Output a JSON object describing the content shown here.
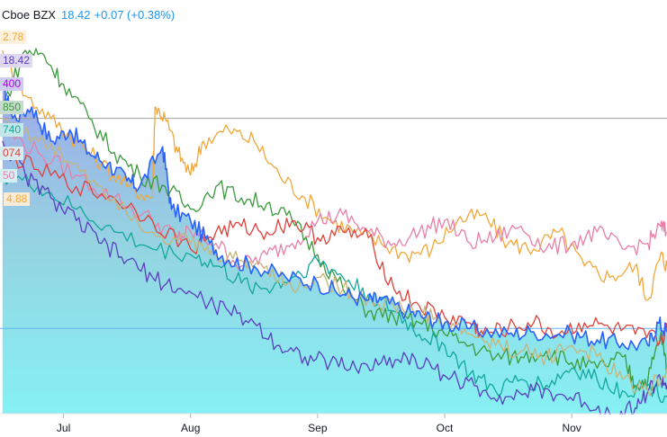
{
  "header": {
    "symbol_exchange": "Cboe BZX",
    "price": "18.42",
    "change": "+0.07 (+0.38%)"
  },
  "value_labels": [
    {
      "text": "2.78",
      "color": "#f2a73a",
      "bg": "#fdf1dd"
    },
    {
      "text": "18.42",
      "color": "#5b3fbf",
      "bg": "#ded9f1"
    },
    {
      "text": "400",
      "color": "#b000e0",
      "bg": "#cfcaf0"
    },
    {
      "text": "850",
      "color": "#3c9a3c",
      "bg": "#c6dcce"
    },
    {
      "text": "740",
      "color": "#14a89a",
      "bg": "#c3e6e8"
    },
    {
      "text": "074",
      "color": "#e0403a",
      "bg": "#d8ecef"
    },
    {
      "text": "50",
      "color": "#e880a8",
      "bg": "#d3f0f2"
    },
    {
      "text": "4.88",
      "color": "#f2a73a",
      "bg": "#f9ecd8"
    }
  ],
  "chart_data": {
    "type": "line",
    "x_tick_labels": [
      "Jul",
      "Aug",
      "Sep",
      "Oct",
      "Nov"
    ],
    "x_range_months": [
      6.5,
      11.75
    ],
    "y_range": [
      -30,
      5
    ],
    "grid": false,
    "series": [
      {
        "color": "#2962ff",
        "fill": true,
        "points": [
          [
            6.52,
            -1.0
          ],
          [
            6.6,
            -4.0
          ],
          [
            6.75,
            -3.0
          ],
          [
            6.9,
            -6.0
          ],
          [
            7.05,
            -5.0
          ],
          [
            7.2,
            -7.0
          ],
          [
            7.35,
            -8.0
          ],
          [
            7.5,
            -9.5
          ],
          [
            7.6,
            -10.0
          ],
          [
            7.78,
            -6.5
          ],
          [
            7.85,
            -12.0
          ],
          [
            8.0,
            -13.0
          ],
          [
            8.15,
            -15.0
          ],
          [
            8.3,
            -16.5
          ],
          [
            8.5,
            -17.0
          ],
          [
            8.75,
            -18.0
          ],
          [
            9.0,
            -18.5
          ],
          [
            9.2,
            -19.5
          ],
          [
            9.4,
            -20.0
          ],
          [
            9.5,
            -20.0
          ],
          [
            9.7,
            -21.0
          ],
          [
            9.85,
            -21.5
          ],
          [
            10.0,
            -22.0
          ],
          [
            10.2,
            -22.5
          ],
          [
            10.5,
            -23.0
          ],
          [
            10.7,
            -22.8
          ],
          [
            11.0,
            -23.0
          ],
          [
            11.2,
            -23.5
          ],
          [
            11.4,
            -23.8
          ],
          [
            11.6,
            -24.0
          ],
          [
            11.68,
            -22.0
          ],
          [
            11.75,
            -22.8
          ]
        ]
      },
      {
        "color": "#f2a73a",
        "fill": false,
        "points": [
          [
            6.52,
            2.0
          ],
          [
            6.7,
            -2.0
          ],
          [
            6.9,
            -4.0
          ],
          [
            7.1,
            -6.0
          ],
          [
            7.3,
            -8.0
          ],
          [
            7.5,
            -10.0
          ],
          [
            7.7,
            -11.0
          ],
          [
            7.72,
            -3.0
          ],
          [
            7.8,
            -4.0
          ],
          [
            7.9,
            -7.0
          ],
          [
            8.0,
            -9.0
          ],
          [
            8.1,
            -6.0
          ],
          [
            8.3,
            -5.0
          ],
          [
            8.5,
            -6.0
          ],
          [
            8.7,
            -9.0
          ],
          [
            8.9,
            -11.0
          ],
          [
            9.1,
            -13.0
          ],
          [
            9.3,
            -14.0
          ],
          [
            9.5,
            -15.0
          ],
          [
            9.7,
            -16.0
          ],
          [
            9.9,
            -15.5
          ],
          [
            10.1,
            -13.0
          ],
          [
            10.3,
            -12.5
          ],
          [
            10.5,
            -15.0
          ],
          [
            10.7,
            -15.5
          ],
          [
            10.9,
            -14.0
          ],
          [
            11.1,
            -17.0
          ],
          [
            11.3,
            -18.0
          ],
          [
            11.5,
            -17.0
          ],
          [
            11.6,
            -20.0
          ],
          [
            11.7,
            -16.0
          ],
          [
            11.75,
            -17.0
          ]
        ]
      },
      {
        "color": "#e880a8",
        "fill": false,
        "points": [
          [
            6.52,
            -5.0
          ],
          [
            6.8,
            -7.0
          ],
          [
            7.1,
            -9.0
          ],
          [
            7.4,
            -11.0
          ],
          [
            7.7,
            -13.0
          ],
          [
            7.9,
            -14.5
          ],
          [
            8.0,
            -14.0
          ],
          [
            8.2,
            -15.0
          ],
          [
            8.4,
            -17.0
          ],
          [
            8.6,
            -16.0
          ],
          [
            8.8,
            -15.0
          ],
          [
            9.0,
            -13.0
          ],
          [
            9.2,
            -12.5
          ],
          [
            9.4,
            -14.0
          ],
          [
            9.6,
            -15.0
          ],
          [
            9.8,
            -14.0
          ],
          [
            10.0,
            -13.0
          ],
          [
            10.2,
            -15.0
          ],
          [
            10.4,
            -14.5
          ],
          [
            10.6,
            -13.5
          ],
          [
            10.8,
            -15.5
          ],
          [
            11.0,
            -15.0
          ],
          [
            11.2,
            -14.0
          ],
          [
            11.4,
            -15.5
          ],
          [
            11.6,
            -15.0
          ],
          [
            11.7,
            -13.5
          ],
          [
            11.75,
            -14.0
          ]
        ]
      },
      {
        "color": "#3c9a3c",
        "fill": false,
        "points": [
          [
            6.52,
            -3.0
          ],
          [
            6.7,
            2.0
          ],
          [
            6.85,
            1.5
          ],
          [
            7.0,
            -1.0
          ],
          [
            7.2,
            -4.0
          ],
          [
            7.4,
            -7.0
          ],
          [
            7.6,
            -9.0
          ],
          [
            7.8,
            -10.0
          ],
          [
            8.0,
            -12.0
          ],
          [
            8.2,
            -10.0
          ],
          [
            8.4,
            -11.0
          ],
          [
            8.6,
            -11.5
          ],
          [
            8.8,
            -13.0
          ],
          [
            9.0,
            -16.0
          ],
          [
            9.2,
            -19.0
          ],
          [
            9.4,
            -21.0
          ],
          [
            9.6,
            -21.5
          ],
          [
            9.8,
            -22.0
          ],
          [
            10.0,
            -23.0
          ],
          [
            10.2,
            -24.0
          ],
          [
            10.4,
            -25.0
          ],
          [
            10.6,
            -25.0
          ],
          [
            10.8,
            -24.5
          ],
          [
            11.0,
            -25.5
          ],
          [
            11.2,
            -26.0
          ],
          [
            11.4,
            -25.0
          ],
          [
            11.5,
            -27.5
          ],
          [
            11.6,
            -27.0
          ],
          [
            11.7,
            -23.0
          ],
          [
            11.75,
            -26.0
          ]
        ]
      },
      {
        "color": "#e0403a",
        "fill": false,
        "points": [
          [
            6.52,
            -7.0
          ],
          [
            6.8,
            -8.5
          ],
          [
            7.1,
            -10.0
          ],
          [
            7.4,
            -11.0
          ],
          [
            7.7,
            -13.0
          ],
          [
            8.0,
            -15.5
          ],
          [
            8.2,
            -14.0
          ],
          [
            8.4,
            -13.5
          ],
          [
            8.6,
            -14.0
          ],
          [
            8.8,
            -13.0
          ],
          [
            9.0,
            -14.5
          ],
          [
            9.2,
            -14.0
          ],
          [
            9.4,
            -14.5
          ],
          [
            9.6,
            -19.0
          ],
          [
            9.8,
            -20.5
          ],
          [
            10.0,
            -21.5
          ],
          [
            10.2,
            -22.0
          ],
          [
            10.3,
            -23.0
          ],
          [
            10.5,
            -22.5
          ],
          [
            10.7,
            -22.0
          ],
          [
            10.9,
            -23.0
          ],
          [
            11.1,
            -22.0
          ],
          [
            11.3,
            -22.5
          ],
          [
            11.5,
            -23.0
          ],
          [
            11.7,
            -23.5
          ],
          [
            11.75,
            -22.5
          ]
        ]
      },
      {
        "color": "#14a89a",
        "fill": false,
        "points": [
          [
            6.52,
            -9.0
          ],
          [
            6.8,
            -10.0
          ],
          [
            7.1,
            -12.0
          ],
          [
            7.4,
            -14.0
          ],
          [
            7.7,
            -15.5
          ],
          [
            8.0,
            -16.0
          ],
          [
            8.2,
            -17.0
          ],
          [
            8.4,
            -18.5
          ],
          [
            8.6,
            -19.0
          ],
          [
            8.8,
            -18.0
          ],
          [
            9.0,
            -16.5
          ],
          [
            9.2,
            -18.0
          ],
          [
            9.4,
            -19.5
          ],
          [
            9.6,
            -21.0
          ],
          [
            9.8,
            -23.0
          ],
          [
            10.0,
            -24.0
          ],
          [
            10.2,
            -26.5
          ],
          [
            10.4,
            -28.0
          ],
          [
            10.6,
            -27.0
          ],
          [
            10.8,
            -27.5
          ],
          [
            11.0,
            -26.0
          ],
          [
            11.2,
            -27.0
          ],
          [
            11.4,
            -28.0
          ],
          [
            11.6,
            -27.5
          ],
          [
            11.75,
            -28.5
          ]
        ]
      },
      {
        "color": "#5b3fbf",
        "fill": false,
        "points": [
          [
            6.52,
            -6.0
          ],
          [
            6.7,
            -9.0
          ],
          [
            6.9,
            -11.0
          ],
          [
            7.1,
            -13.0
          ],
          [
            7.3,
            -15.0
          ],
          [
            7.5,
            -16.5
          ],
          [
            7.7,
            -18.0
          ],
          [
            7.9,
            -19.0
          ],
          [
            8.1,
            -20.0
          ],
          [
            8.3,
            -21.0
          ],
          [
            8.5,
            -22.0
          ],
          [
            8.7,
            -24.0
          ],
          [
            8.9,
            -25.0
          ],
          [
            9.1,
            -25.5
          ],
          [
            9.3,
            -26.0
          ],
          [
            9.5,
            -25.5
          ],
          [
            9.7,
            -25.0
          ],
          [
            9.9,
            -26.0
          ],
          [
            10.1,
            -27.0
          ],
          [
            10.3,
            -28.0
          ],
          [
            10.5,
            -28.5
          ],
          [
            10.7,
            -28.0
          ],
          [
            10.9,
            -28.3
          ],
          [
            11.1,
            -29.0
          ],
          [
            11.3,
            -30.0
          ],
          [
            11.5,
            -29.5
          ],
          [
            11.6,
            -28.0
          ],
          [
            11.7,
            -27.0
          ],
          [
            11.75,
            -27.5
          ]
        ]
      },
      {
        "color": "#c8b478",
        "fill": false,
        "points": [
          [
            6.52,
            -4.0
          ],
          [
            6.8,
            -6.0
          ],
          [
            7.1,
            -8.0
          ],
          [
            7.4,
            -11.0
          ],
          [
            7.7,
            -14.0
          ],
          [
            8.0,
            -15.0
          ],
          [
            8.2,
            -16.0
          ],
          [
            8.4,
            -16.5
          ],
          [
            8.6,
            -17.0
          ],
          [
            8.8,
            -19.0
          ],
          [
            9.0,
            -18.0
          ],
          [
            9.2,
            -19.0
          ],
          [
            9.4,
            -20.0
          ],
          [
            9.6,
            -20.5
          ],
          [
            9.8,
            -21.0
          ],
          [
            10.0,
            -22.0
          ],
          [
            10.2,
            -23.0
          ],
          [
            10.4,
            -24.0
          ],
          [
            10.6,
            -24.5
          ],
          [
            10.8,
            -25.0
          ],
          [
            11.0,
            -24.0
          ],
          [
            11.2,
            -25.0
          ],
          [
            11.4,
            -27.0
          ],
          [
            11.6,
            -28.0
          ],
          [
            11.75,
            -26.0
          ]
        ]
      }
    ],
    "reference_lines": [
      {
        "y": -4.0,
        "color": "#9e9e9e"
      },
      {
        "y": -22.5,
        "color": "#64b5f6"
      }
    ]
  }
}
